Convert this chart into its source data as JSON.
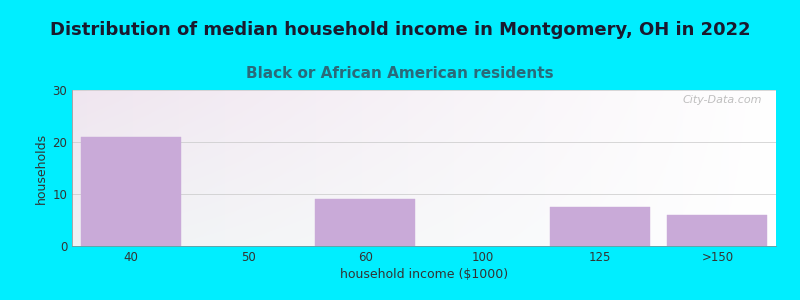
{
  "title": "Distribution of median household income in Montgomery, OH in 2022",
  "subtitle": "Black or African American residents",
  "xlabel": "household income ($1000)",
  "ylabel": "households",
  "categories": [
    "40",
    "50",
    "60",
    "100",
    "125",
    ">150"
  ],
  "values": [
    21,
    0,
    9,
    0,
    7.5,
    6
  ],
  "bar_positions": [
    0,
    1,
    2,
    3,
    4,
    5
  ],
  "bar_width": 0.85,
  "ylim": [
    0,
    30
  ],
  "yticks": [
    0,
    10,
    20,
    30
  ],
  "bar_color": "#c9aad8",
  "bar_edge_color": "#c9aad8",
  "background_outer": "#00eeff",
  "title_color": "#1a1a2e",
  "subtitle_color": "#2a6a7a",
  "title_fontsize": 13,
  "subtitle_fontsize": 11,
  "axis_label_fontsize": 9,
  "tick_fontsize": 8.5,
  "watermark": "City-Data.com",
  "plot_bg_left_color": "#d8f0d0",
  "plot_bg_right_color": "#f8fff8"
}
